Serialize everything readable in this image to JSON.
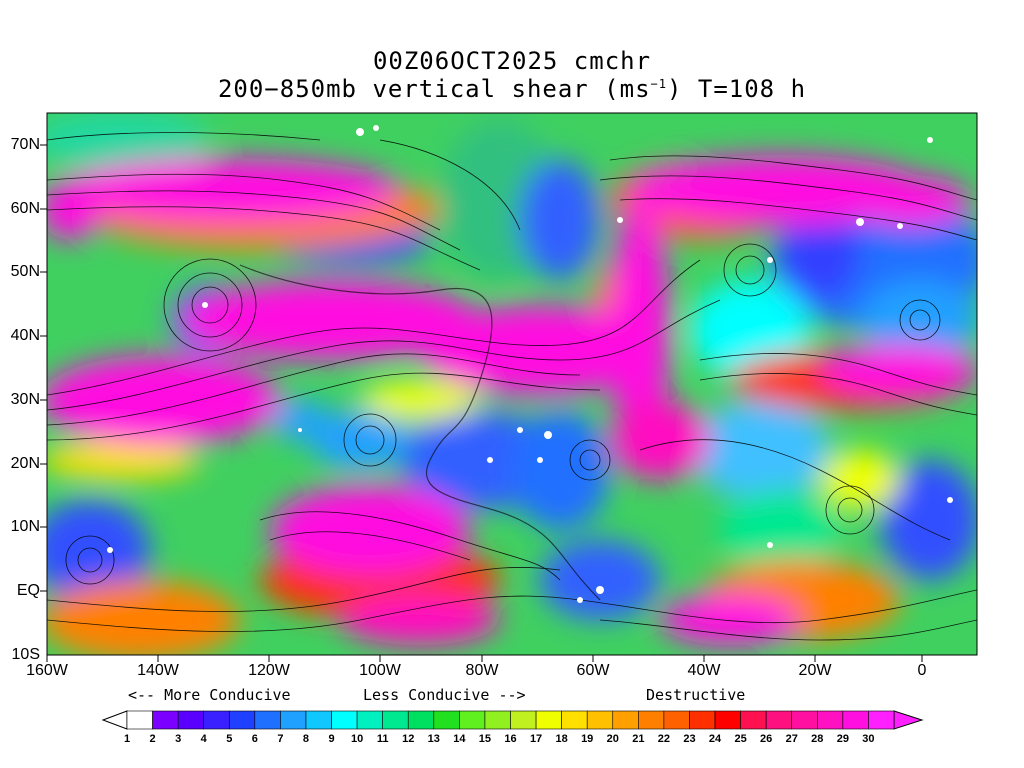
{
  "title_line1": "00Z06OCT2025 cmchr",
  "title_line2_pre": "200−850mb vertical shear (ms",
  "title_line2_sup": "−1",
  "title_line2_post": ") T=108 h",
  "lat_labels": [
    "70N",
    "60N",
    "50N",
    "40N",
    "30N",
    "20N",
    "10N",
    "EQ",
    "10S"
  ],
  "lon_labels": [
    "160W",
    "140W",
    "120W",
    "100W",
    "80W",
    "60W",
    "40W",
    "20W",
    "0"
  ],
  "legend": {
    "more_conducive": "<-- More Conducive",
    "less_conducive": "Less Conducive -->",
    "destructive": "Destructive"
  },
  "colorbar": {
    "labels": [
      "1",
      "2",
      "3",
      "4",
      "5",
      "6",
      "7",
      "8",
      "9",
      "10",
      "11",
      "12",
      "13",
      "14",
      "15",
      "16",
      "17",
      "18",
      "19",
      "20",
      "21",
      "22",
      "23",
      "24",
      "25",
      "26",
      "27",
      "28",
      "29",
      "30"
    ],
    "colors": [
      "#ffffff",
      "#7b00ff",
      "#5a00ff",
      "#3a20ff",
      "#2040ff",
      "#2070ff",
      "#20a0ff",
      "#10c8ff",
      "#00ffff",
      "#00f0c0",
      "#00e890",
      "#00e060",
      "#20e020",
      "#60f020",
      "#90f020",
      "#c0f020",
      "#f0ff00",
      "#ffe000",
      "#ffc000",
      "#ffa000",
      "#ff8000",
      "#ff6000",
      "#ff3000",
      "#ff0000",
      "#ff1050",
      "#ff1080",
      "#ff10a0",
      "#ff10c0",
      "#ff10e0",
      "#ff20ff"
    ],
    "underflow_color": "#ffffff",
    "overflow_color": "#ff20ff"
  }
}
